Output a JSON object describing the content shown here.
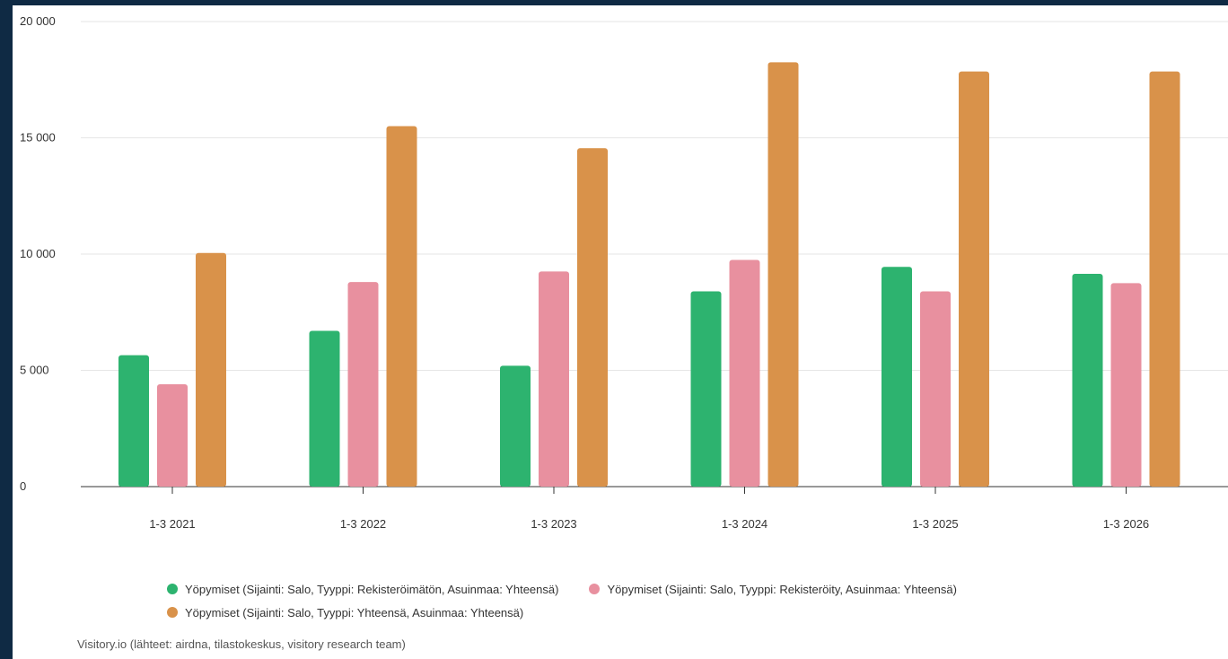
{
  "chart_data": {
    "type": "bar",
    "categories": [
      "1-3 2021",
      "1-3 2022",
      "1-3 2023",
      "1-3 2024",
      "1-3 2025",
      "1-3 2026"
    ],
    "series": [
      {
        "name": "Yöpymiset (Sijainti: Salo, Tyyppi: Rekisteröimätön, Asuinmaa: Yhteensä)",
        "color": "#2db36f",
        "values": [
          5650,
          6700,
          5200,
          8400,
          9450,
          9150
        ]
      },
      {
        "name": "Yöpymiset (Sijainti: Salo, Tyyppi: Rekisteröity, Asuinmaa: Yhteensä)",
        "color": "#e8909f",
        "values": [
          4400,
          8800,
          9250,
          9750,
          8400,
          8750
        ]
      },
      {
        "name": "Yöpymiset (Sijainti: Salo, Tyyppi: Yhteensä, Asuinmaa: Yhteensä)",
        "color": "#d9924a",
        "values": [
          10050,
          15500,
          14550,
          18250,
          17850,
          17850
        ]
      }
    ],
    "ylim": [
      0,
      20000
    ],
    "yticks": [
      "0",
      "5 000",
      "10 000",
      "15 000",
      "20 000"
    ],
    "ytick_values": [
      0,
      5000,
      10000,
      15000,
      20000
    ],
    "grid": true,
    "legend_position": "bottom"
  },
  "source": "Visitory.io (lähteet: airdna, tilastokeskus, visitory research team)"
}
